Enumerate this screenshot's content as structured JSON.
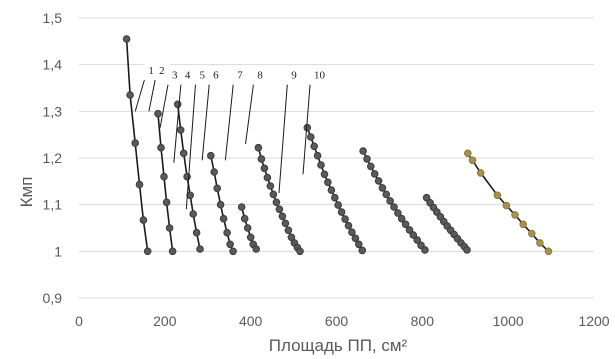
{
  "chart_data": {
    "type": "scatter",
    "xlabel": "Площадь ПП, см²",
    "ylabel": "Кмп",
    "xlim": [
      0,
      1200
    ],
    "ylim": [
      0.9,
      1.5
    ],
    "xticks": [
      0,
      200,
      400,
      600,
      800,
      1000,
      1200
    ],
    "xtick_labels": [
      "0",
      "200",
      "400",
      "600",
      "800",
      "1000",
      "1200"
    ],
    "yticks": [
      0.9,
      1,
      1.1,
      1.2,
      1.3,
      1.4,
      1.5
    ],
    "ytick_labels": [
      "0,9",
      "1",
      "1,1",
      "1,2",
      "1,3",
      "1,4",
      "1,5"
    ],
    "grid": "horizontal",
    "colors": {
      "grid": "#d9d9d9",
      "marker": "#3a3a3a",
      "marker_fill": "#5a5a5a",
      "marker_highlight": "#8c7a3c",
      "marker_highlight_fill": "#a8924c",
      "line": "#1a1a1a"
    },
    "series": [
      {
        "name": "1",
        "points": [
          [
            111,
            1.455
          ],
          [
            119,
            1.335
          ],
          [
            131,
            1.232
          ],
          [
            141,
            1.143
          ],
          [
            150,
            1.067
          ],
          [
            160,
            1.0
          ]
        ]
      },
      {
        "name": "2",
        "points": [
          [
            184,
            1.295
          ],
          [
            191,
            1.222
          ],
          [
            198,
            1.16
          ],
          [
            204,
            1.105
          ],
          [
            211,
            1.05
          ],
          [
            218,
            1.0
          ]
        ]
      },
      {
        "name": "3",
        "points": [
          [
            230,
            1.315
          ],
          [
            237,
            1.26
          ],
          [
            244,
            1.21
          ],
          [
            252,
            1.16
          ],
          [
            259,
            1.12
          ],
          [
            266,
            1.08
          ],
          [
            274,
            1.04
          ],
          [
            282,
            1.005
          ]
        ]
      },
      {
        "name": "4",
        "points": [
          [
            307,
            1.205
          ],
          [
            315,
            1.17
          ],
          [
            322,
            1.135
          ],
          [
            330,
            1.1
          ],
          [
            337,
            1.07
          ],
          [
            345,
            1.04
          ],
          [
            352,
            1.015
          ],
          [
            359,
            1.0
          ]
        ]
      },
      {
        "name": "5",
        "points": [
          [
            379,
            1.095
          ],
          [
            386,
            1.07
          ],
          [
            393,
            1.05
          ],
          [
            400,
            1.03
          ],
          [
            406,
            1.015
          ],
          [
            413,
            1.005
          ]
        ]
      },
      {
        "name": "6",
        "points": [
          [
            418,
            1.222
          ],
          [
            425,
            1.198
          ],
          [
            432,
            1.178
          ],
          [
            439,
            1.158
          ],
          [
            446,
            1.14
          ],
          [
            453,
            1.122
          ],
          [
            460,
            1.105
          ],
          [
            467,
            1.09
          ],
          [
            474,
            1.075
          ],
          [
            481,
            1.06
          ],
          [
            488,
            1.045
          ],
          [
            495,
            1.03
          ],
          [
            502,
            1.018
          ],
          [
            509,
            1.008
          ],
          [
            515,
            1.0
          ]
        ]
      },
      {
        "name": "7",
        "points": [
          [
            532,
            1.265
          ],
          [
            540,
            1.245
          ],
          [
            548,
            1.225
          ],
          [
            556,
            1.205
          ],
          [
            564,
            1.185
          ],
          [
            572,
            1.165
          ],
          [
            580,
            1.148
          ],
          [
            588,
            1.131
          ],
          [
            596,
            1.115
          ],
          [
            604,
            1.099
          ],
          [
            612,
            1.084
          ],
          [
            620,
            1.069
          ],
          [
            628,
            1.055
          ],
          [
            636,
            1.041
          ],
          [
            644,
            1.028
          ],
          [
            652,
            1.015
          ],
          [
            660,
            1.002
          ]
        ]
      },
      {
        "name": "8",
        "points": [
          [
            662,
            1.215
          ],
          [
            671,
            1.198
          ],
          [
            680,
            1.182
          ],
          [
            689,
            1.166
          ],
          [
            698,
            1.151
          ],
          [
            707,
            1.136
          ],
          [
            716,
            1.122
          ],
          [
            725,
            1.108
          ],
          [
            734,
            1.095
          ],
          [
            743,
            1.082
          ],
          [
            752,
            1.07
          ],
          [
            761,
            1.058
          ],
          [
            770,
            1.046
          ],
          [
            779,
            1.035
          ],
          [
            788,
            1.024
          ],
          [
            797,
            1.013
          ],
          [
            806,
            1.003
          ]
        ]
      },
      {
        "name": "9",
        "points": [
          [
            810,
            1.115
          ],
          [
            818,
            1.104
          ],
          [
            826,
            1.094
          ],
          [
            834,
            1.084
          ],
          [
            842,
            1.074
          ],
          [
            850,
            1.064
          ],
          [
            858,
            1.054
          ],
          [
            866,
            1.045
          ],
          [
            874,
            1.036
          ],
          [
            882,
            1.027
          ],
          [
            890,
            1.018
          ],
          [
            898,
            1.01
          ],
          [
            904,
            1.003
          ]
        ]
      },
      {
        "name": "10",
        "points": [
          [
            906,
            1.21
          ],
          [
            917,
            1.195
          ],
          [
            936,
            1.168
          ],
          [
            975,
            1.12
          ],
          [
            996,
            1.098
          ],
          [
            1016,
            1.078
          ],
          [
            1035,
            1.058
          ],
          [
            1055,
            1.038
          ],
          [
            1074,
            1.018
          ],
          [
            1094,
            1.0
          ]
        ]
      }
    ],
    "annotations": [
      {
        "text": "1",
        "series": "1",
        "label_x": 157,
        "label_y": 1.38,
        "target_x": 131,
        "target_y": 1.3
      },
      {
        "text": "2",
        "series": "2",
        "label_x": 182,
        "label_y": 1.38,
        "target_x": 163,
        "target_y": 1.3
      },
      {
        "text": "3",
        "series": "3",
        "label_x": 212,
        "label_y": 1.37,
        "target_x": 189,
        "target_y": 1.265
      },
      {
        "text": "4",
        "series": "4",
        "label_x": 242,
        "label_y": 1.37,
        "target_x": 221,
        "target_y": 1.19
      },
      {
        "text": "5",
        "series": "5",
        "label_x": 276,
        "label_y": 1.37,
        "target_x": 250,
        "target_y": 1.09
      },
      {
        "text": "6",
        "series": "6",
        "label_x": 308,
        "label_y": 1.37,
        "target_x": 287,
        "target_y": 1.195
      },
      {
        "text": "7",
        "series": "7",
        "label_x": 364,
        "label_y": 1.37,
        "target_x": 341,
        "target_y": 1.195
      },
      {
        "text": "8",
        "series": "8",
        "label_x": 411,
        "label_y": 1.37,
        "target_x": 388,
        "target_y": 1.23
      },
      {
        "text": "9",
        "series": "9",
        "label_x": 490,
        "label_y": 1.37,
        "target_x": 466,
        "target_y": 1.125
      },
      {
        "text": "10",
        "series": "10",
        "label_x": 543,
        "label_y": 1.37,
        "target_x": 522,
        "target_y": 1.165
      }
    ]
  }
}
